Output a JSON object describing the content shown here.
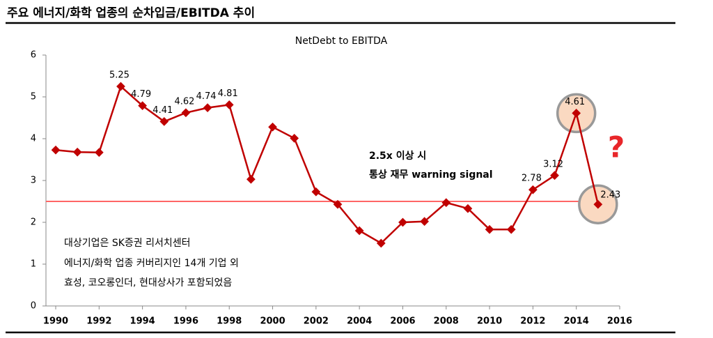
{
  "header": {
    "title": "주요 에너지/화학 업종의 순차입금/EBITDA 추이"
  },
  "chart_data": {
    "type": "line",
    "title": "NetDebt to EBITDA",
    "x": [
      1990,
      1991,
      1992,
      1993,
      1994,
      1995,
      1996,
      1997,
      1998,
      1999,
      2000,
      2001,
      2002,
      2003,
      2004,
      2005,
      2006,
      2007,
      2008,
      2009,
      2010,
      2011,
      2012,
      2013,
      2014,
      2015
    ],
    "series": [
      {
        "name": "NetDebt to EBITDA",
        "color": "#c00000",
        "values": [
          3.73,
          3.68,
          3.67,
          5.25,
          4.79,
          4.41,
          4.62,
          4.74,
          4.81,
          3.03,
          4.28,
          4.01,
          2.73,
          2.43,
          1.8,
          1.5,
          2.0,
          2.02,
          2.47,
          2.33,
          1.83,
          1.83,
          2.78,
          3.12,
          4.61,
          2.43
        ],
        "value_labels": [
          null,
          null,
          null,
          "5.25",
          "4.79",
          "4.41",
          "4.62",
          "4.74",
          "4.81",
          null,
          null,
          null,
          null,
          null,
          null,
          null,
          null,
          null,
          null,
          null,
          null,
          null,
          "2.78",
          "3.12",
          "4.61",
          "2.43"
        ]
      }
    ],
    "xlim": [
      1989.55,
      2016
    ],
    "xticks": [
      1990,
      1992,
      1994,
      1996,
      1998,
      2000,
      2002,
      2004,
      2006,
      2008,
      2010,
      2012,
      2014,
      2016
    ],
    "ylim": [
      0,
      6
    ],
    "yticks": [
      0,
      1,
      2,
      3,
      4,
      5,
      6
    ],
    "reference_line": {
      "value": 2.5,
      "color": "#ff6666"
    },
    "highlight_points": [
      24,
      25
    ],
    "annotations": [
      "2.5x 이상 시",
      "통상 재무 warning signal",
      "?"
    ],
    "notes": [
      "대상기업은 SK증권 리서치센터",
      "에너지/화학 업종 커버리지인 14개 기업 외",
      "효성, 코오롱인더, 현대상사가 포함되었음"
    ]
  }
}
